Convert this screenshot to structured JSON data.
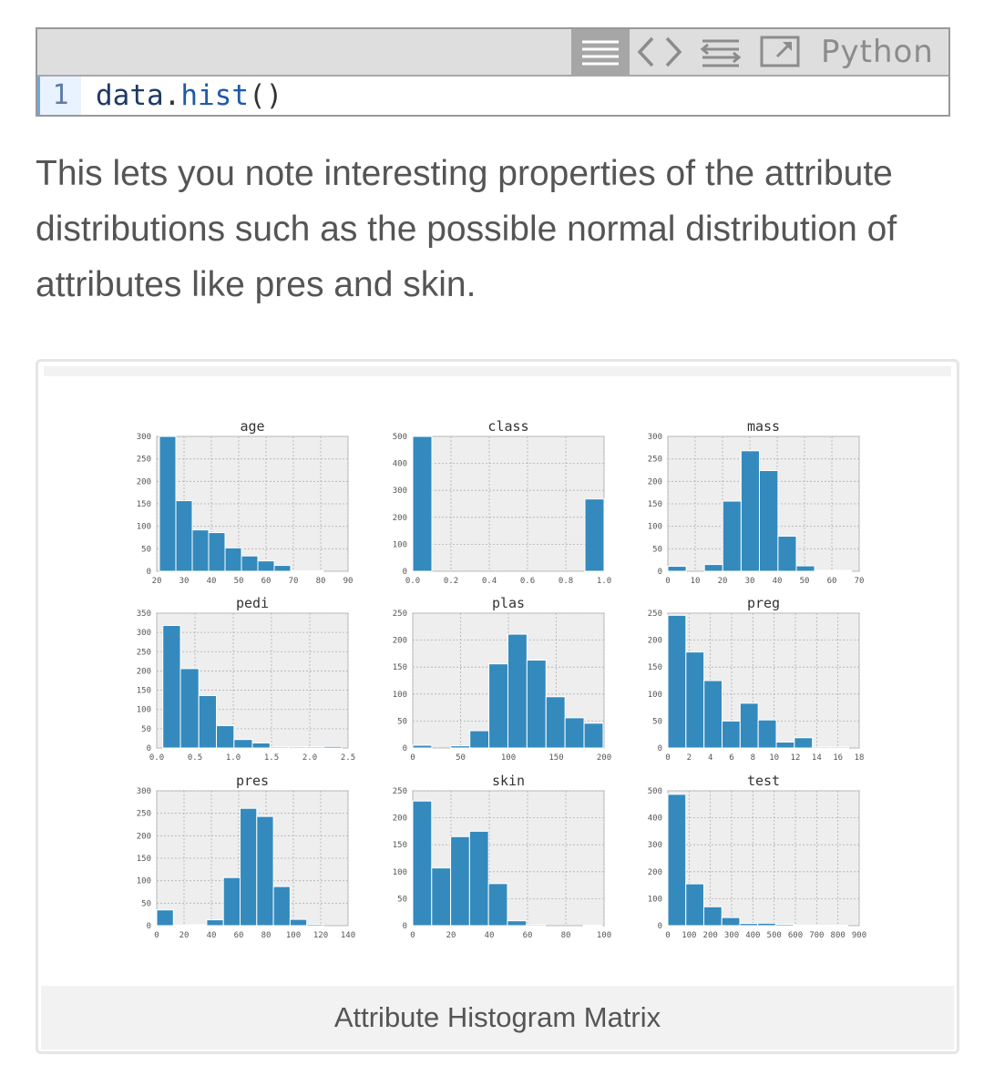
{
  "code": {
    "language": "Python",
    "line_number": "1",
    "tokens": {
      "obj": "data",
      "dot": ".",
      "fn": "hist",
      "parens": "()"
    },
    "toolbar_icons": [
      "view-source-icon",
      "code-icon",
      "wrap-lines-icon",
      "open-in-window-icon"
    ]
  },
  "paragraph": "This lets you note interesting properties of the attribute distributions such as the possible normal distribution of attributes like pres and skin.",
  "figure": {
    "caption": "Attribute Histogram Matrix"
  },
  "colors": {
    "bar": "#348abd",
    "plot_bg": "#eeeeee",
    "accent_gutter": "#e8f3ff",
    "view_button": "#a6a6a6"
  },
  "chart_data": [
    {
      "type": "bar",
      "title": "age",
      "bins": 10,
      "xlim": [
        20,
        90
      ],
      "ylim": [
        0,
        300
      ],
      "xticks": [
        "20",
        "30",
        "40",
        "50",
        "60",
        "70",
        "80",
        "90"
      ],
      "yticks": [
        "0",
        "50",
        "100",
        "150",
        "200",
        "250",
        "300"
      ],
      "edges": [
        21,
        27,
        33,
        39,
        45,
        51,
        57,
        63,
        69,
        75,
        81
      ],
      "values": [
        300,
        157,
        92,
        86,
        52,
        34,
        23,
        13,
        1,
        1
      ]
    },
    {
      "type": "bar",
      "title": "class",
      "bins": 10,
      "xlim": [
        0,
        1
      ],
      "ylim": [
        0,
        500
      ],
      "xticks": [
        "0.0",
        "0.2",
        "0.4",
        "0.6",
        "0.8",
        "1.0"
      ],
      "yticks": [
        "0",
        "100",
        "200",
        "300",
        "400",
        "500"
      ],
      "edges": [
        0,
        0.1,
        0.2,
        0.3,
        0.4,
        0.5,
        0.6,
        0.7,
        0.8,
        0.9,
        1.0
      ],
      "values": [
        500,
        0,
        0,
        0,
        0,
        0,
        0,
        0,
        0,
        268
      ]
    },
    {
      "type": "bar",
      "title": "mass",
      "bins": 10,
      "xlim": [
        0,
        70
      ],
      "ylim": [
        0,
        300
      ],
      "xticks": [
        "0",
        "10",
        "20",
        "30",
        "40",
        "50",
        "60",
        "70"
      ],
      "yticks": [
        "0",
        "50",
        "100",
        "150",
        "200",
        "250",
        "300"
      ],
      "edges": [
        0,
        6.7,
        13.4,
        20.1,
        26.8,
        33.5,
        40.3,
        47.0,
        53.7,
        60.4,
        67.1
      ],
      "values": [
        11,
        0,
        15,
        156,
        268,
        224,
        78,
        12,
        2,
        2
      ]
    },
    {
      "type": "bar",
      "title": "pedi",
      "bins": 10,
      "xlim": [
        0,
        2.5
      ],
      "ylim": [
        0,
        350
      ],
      "xticks": [
        "0.0",
        "0.5",
        "1.0",
        "1.5",
        "2.0",
        "2.5"
      ],
      "yticks": [
        "0",
        "50",
        "100",
        "150",
        "200",
        "250",
        "300",
        "350"
      ],
      "edges": [
        0.08,
        0.31,
        0.55,
        0.78,
        1.01,
        1.25,
        1.48,
        1.72,
        1.95,
        2.18,
        2.42
      ],
      "values": [
        318,
        206,
        136,
        58,
        22,
        13,
        3,
        3,
        3,
        4
      ]
    },
    {
      "type": "bar",
      "title": "plas",
      "bins": 10,
      "xlim": [
        0,
        200
      ],
      "ylim": [
        0,
        250
      ],
      "xticks": [
        "0",
        "50",
        "100",
        "150",
        "200"
      ],
      "yticks": [
        "0",
        "50",
        "100",
        "150",
        "200",
        "250"
      ],
      "edges": [
        0,
        19.9,
        39.8,
        59.7,
        79.6,
        99.5,
        119.4,
        139.3,
        159.2,
        179.1,
        199
      ],
      "values": [
        5,
        0,
        4,
        32,
        156,
        211,
        163,
        95,
        56,
        46
      ]
    },
    {
      "type": "bar",
      "title": "preg",
      "bins": 10,
      "xlim": [
        0,
        18
      ],
      "ylim": [
        0,
        250
      ],
      "xticks": [
        "0",
        "2",
        "4",
        "6",
        "8",
        "10",
        "12",
        "14",
        "16",
        "18"
      ],
      "yticks": [
        "0",
        "50",
        "100",
        "150",
        "200",
        "250"
      ],
      "edges": [
        0,
        1.7,
        3.4,
        5.1,
        6.8,
        8.5,
        10.2,
        11.9,
        13.6,
        15.3,
        17
      ],
      "values": [
        246,
        178,
        125,
        50,
        83,
        52,
        11,
        19,
        2,
        2
      ]
    },
    {
      "type": "bar",
      "title": "pres",
      "bins": 10,
      "xlim": [
        0,
        140
      ],
      "ylim": [
        0,
        300
      ],
      "xticks": [
        "0",
        "20",
        "40",
        "60",
        "80",
        "100",
        "120",
        "140"
      ],
      "yticks": [
        "0",
        "50",
        "100",
        "150",
        "200",
        "250",
        "300"
      ],
      "edges": [
        0,
        12.2,
        24.4,
        36.6,
        48.8,
        61,
        73.2,
        85.4,
        97.6,
        109.8,
        122
      ],
      "values": [
        35,
        1,
        2,
        13,
        107,
        261,
        243,
        87,
        14,
        3
      ]
    },
    {
      "type": "bar",
      "title": "skin",
      "bins": 10,
      "xlim": [
        0,
        100
      ],
      "ylim": [
        0,
        250
      ],
      "xticks": [
        "0",
        "20",
        "40",
        "60",
        "80",
        "100"
      ],
      "yticks": [
        "0",
        "50",
        "100",
        "150",
        "200",
        "250"
      ],
      "edges": [
        0,
        9.9,
        19.8,
        29.7,
        39.6,
        49.5,
        59.4,
        69.3,
        79.2,
        89.1,
        99
      ],
      "values": [
        231,
        107,
        165,
        175,
        78,
        9,
        2,
        0,
        0,
        1
      ]
    },
    {
      "type": "bar",
      "title": "test",
      "bins": 10,
      "xlim": [
        0,
        900
      ],
      "ylim": [
        0,
        500
      ],
      "xticks": [
        "0",
        "100",
        "200",
        "300",
        "400",
        "500",
        "600",
        "700",
        "800",
        "900"
      ],
      "yticks": [
        "0",
        "100",
        "200",
        "300",
        "400",
        "500"
      ],
      "edges": [
        0,
        84.6,
        169.2,
        253.8,
        338.4,
        423,
        507.6,
        592.2,
        676.8,
        761.4,
        846
      ],
      "values": [
        487,
        155,
        70,
        30,
        8,
        9,
        5,
        2,
        1,
        1
      ]
    }
  ]
}
